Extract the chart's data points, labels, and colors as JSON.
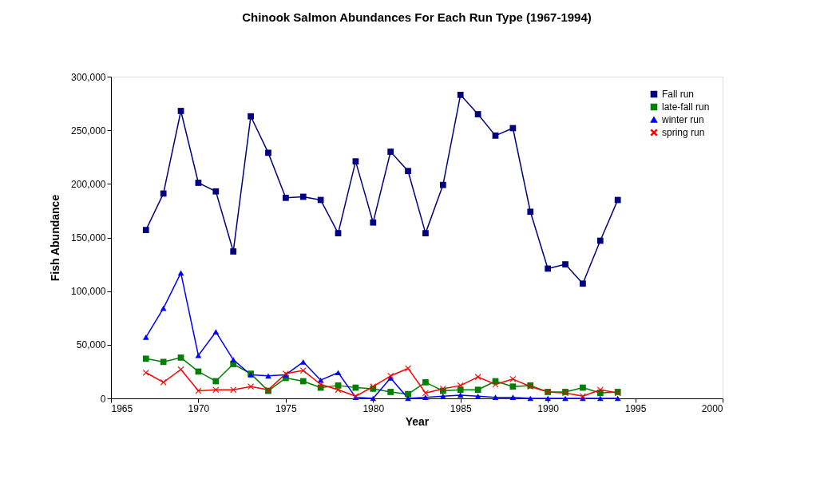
{
  "chart_data": {
    "type": "line",
    "title": "Chinook Salmon Abundances For Each Run Type (1967-1994)",
    "xlabel": "Year",
    "ylabel": "Fish Abundance",
    "x": [
      1967,
      1968,
      1969,
      1970,
      1971,
      1972,
      1973,
      1974,
      1975,
      1976,
      1977,
      1978,
      1979,
      1980,
      1981,
      1982,
      1983,
      1984,
      1985,
      1986,
      1987,
      1988,
      1989,
      1990,
      1991,
      1992,
      1993,
      1994
    ],
    "series": [
      {
        "name": "Fall run",
        "color": "#000080",
        "marker": "square",
        "values": [
          157000,
          191000,
          268000,
          201000,
          193000,
          137000,
          263000,
          229000,
          187000,
          188000,
          185000,
          154000,
          221000,
          164000,
          230000,
          212000,
          154000,
          199000,
          283000,
          265000,
          245000,
          252000,
          174000,
          121000,
          125000,
          107000,
          147000,
          185000
        ]
      },
      {
        "name": "late-fall run",
        "color": "#008000",
        "marker": "square",
        "values": [
          37000,
          34000,
          38000,
          25000,
          16000,
          32000,
          23000,
          7000,
          19000,
          16000,
          10000,
          12000,
          10000,
          9000,
          6000,
          4000,
          15000,
          7000,
          8000,
          8000,
          16000,
          11000,
          12000,
          6000,
          6000,
          10000,
          5000,
          6000
        ]
      },
      {
        "name": "winter run",
        "color": "#0000ff",
        "marker": "triangle",
        "values": [
          57000,
          84000,
          117000,
          40000,
          62000,
          36000,
          22000,
          21000,
          22000,
          34000,
          17000,
          24000,
          1000,
          0,
          19000,
          0,
          1000,
          2000,
          3000,
          2000,
          1000,
          1000,
          0,
          0,
          0,
          0,
          0,
          0
        ]
      },
      {
        "name": "spring run",
        "color": "#ff0000",
        "marker": "cross",
        "values": [
          24000,
          15000,
          27000,
          7000,
          8000,
          8000,
          11000,
          8000,
          23000,
          26000,
          13000,
          8000,
          2000,
          11000,
          21000,
          28000,
          5000,
          9000,
          12000,
          20000,
          13000,
          18000,
          11000,
          6000,
          5000,
          2000,
          8000,
          5000
        ]
      }
    ],
    "xlim": [
      1965,
      2000
    ],
    "xticks": [
      1965,
      1970,
      1975,
      1980,
      1985,
      1990,
      1995,
      2000
    ],
    "ylim": [
      0,
      300000
    ],
    "yticks": [
      0,
      {
        "value": 50000,
        "label": "50,000"
      },
      {
        "value": 100000,
        "label": "100,000"
      },
      {
        "value": 150000,
        "label": "150,000"
      },
      {
        "value": 200000,
        "label": "200,000"
      },
      {
        "value": 250000,
        "label": "250,000"
      },
      {
        "value": 300000,
        "label": "300,000"
      }
    ],
    "grid": false,
    "legend": "top right"
  }
}
